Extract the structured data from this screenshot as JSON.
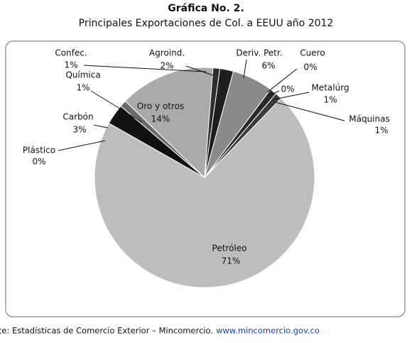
{
  "chart_data": {
    "type": "pie",
    "title": "Gráfica No. 2.",
    "subtitle": "Principales Exportaciones de Col. a EEUU año 2012",
    "categories": [
      "Agroind.",
      "Deriv. Petr.",
      "Cuero",
      null,
      "Metalúrg",
      "Máquinas",
      "Petróleo",
      "Plástico",
      "Carbón",
      "Química",
      "Oro y otros",
      "Confec."
    ],
    "values": [
      2,
      6,
      0,
      0,
      1,
      1,
      71,
      0,
      3,
      1,
      14,
      1
    ],
    "value_labels": [
      "2%",
      "6%",
      "0%",
      "0%",
      "1%",
      "1%",
      "71%",
      "0%",
      "3%",
      "1%",
      "14%",
      "1%"
    ],
    "colors": [
      "#1e1e1e",
      "#8a8a8a",
      "#e8e8e8",
      "#d0d0d0",
      "#2a2a2a",
      "#3a3a3a",
      "#bdbdbd",
      "#cfcfcf",
      "#111111",
      "#6a6a6a",
      "#aaaaaa",
      "#2e2e2e"
    ],
    "source": "Fuente: Estadísticas de Comercio Exterior – Mincomercio.",
    "source_url": "www.mincomercio.gov.co"
  }
}
